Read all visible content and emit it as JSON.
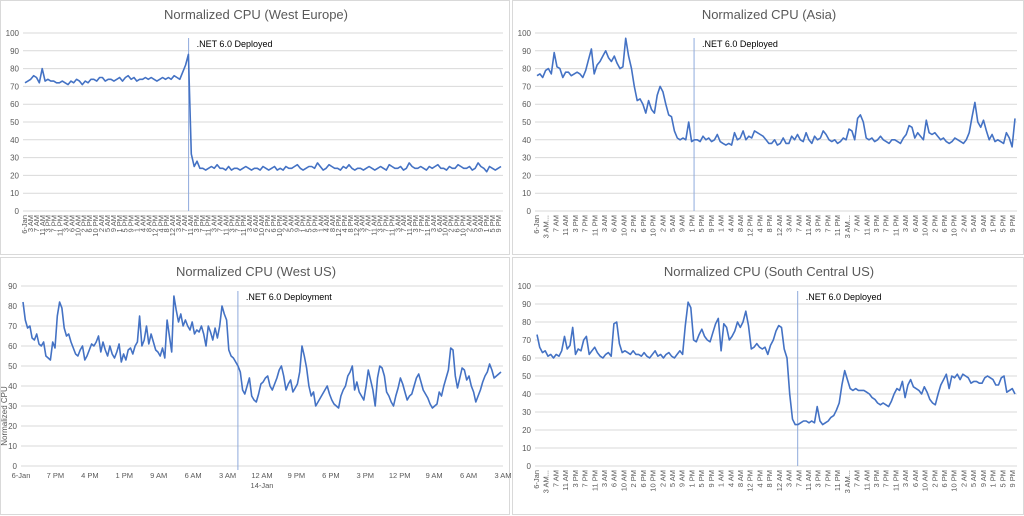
{
  "colors": {
    "series": "#4472C4",
    "grid": "#d9d9d9",
    "annotation": "#8faadc",
    "text": "#595959"
  },
  "chart_data": [
    {
      "type": "line",
      "title": "Normalized CPU (West Europe)",
      "ylabel": "",
      "ylim": [
        0,
        100
      ],
      "yticks": [
        0,
        10,
        20,
        30,
        40,
        50,
        60,
        70,
        80,
        90,
        100
      ],
      "rotated_ticks": true,
      "xticks": [
        "6-Jan",
        "3 AM",
        "7 AM",
        "11 AM",
        "3 PM",
        "7 PM",
        "11 PM",
        "3 AM",
        "6 AM",
        "10 AM",
        "2 PM",
        "6 PM",
        "10 PM",
        "2 AM",
        "5 AM",
        "9 AM",
        "1 PM",
        "5 PM",
        "9 PM",
        "1 AM",
        "4 AM",
        "8 AM",
        "12 PM",
        "4 PM",
        "8 PM",
        "12 AM",
        "3 AM",
        "7 AM",
        "11 AM",
        "3 PM",
        "7 PM",
        "11 PM",
        "3 AM",
        "7 AM",
        "11 AM",
        "3 PM",
        "7 PM",
        "11 PM",
        "3 AM",
        "6 AM",
        "10 AM",
        "2 PM",
        "6 PM",
        "10 PM",
        "2 AM",
        "5 AM",
        "9 AM",
        "1 PM",
        "5 PM",
        "9 PM",
        "1 AM",
        "4 AM",
        "8 AM",
        "12 PM",
        "4 PM",
        "8 PM",
        "12 AM",
        "3 AM",
        "7 AM",
        "11 AM",
        "3 PM",
        "7 PM",
        "11 PM",
        "3 AM",
        "7 AM",
        "11 AM",
        "3 PM",
        "7 PM",
        "11 PM",
        "3 AM",
        "6 AM",
        "10 AM",
        "2 PM",
        "6 PM",
        "10 PM",
        "2 AM",
        "5 AM",
        "9 AM",
        "1 PM",
        "5 PM",
        "9 PM"
      ],
      "annotation": {
        "label": ".NET 6.0 Deployed",
        "at": 0.345
      },
      "values": [
        72,
        73,
        74,
        76,
        75,
        72,
        80,
        73,
        74,
        73,
        73,
        72,
        72,
        73,
        72,
        71,
        73,
        72,
        74,
        73,
        71,
        73,
        72,
        74,
        74,
        73,
        75,
        75,
        73,
        74,
        74,
        73,
        74,
        75,
        73,
        75,
        76,
        74,
        75,
        73,
        74,
        74,
        75,
        74,
        75,
        74,
        73,
        74,
        75,
        74,
        75,
        74,
        76,
        75,
        74,
        78,
        82,
        88,
        32,
        25,
        28,
        24,
        24,
        23,
        24,
        25,
        24,
        26,
        24,
        24,
        23,
        25,
        23,
        24,
        24,
        23,
        24,
        25,
        24,
        23,
        24,
        24,
        23,
        25,
        24,
        23,
        24,
        25,
        23,
        24,
        23,
        25,
        24,
        24,
        25,
        26,
        24,
        23,
        24,
        25,
        25,
        24,
        27,
        25,
        23,
        24,
        26,
        25,
        24,
        24,
        23,
        25,
        24,
        26,
        24,
        23,
        24,
        24,
        23,
        24,
        25,
        24,
        23,
        24,
        25,
        24,
        23,
        26,
        25,
        24,
        24,
        25,
        23,
        24,
        27,
        25,
        24,
        24,
        25,
        24,
        23,
        25,
        24,
        25,
        26,
        24,
        24,
        23,
        25,
        24,
        24,
        26,
        25,
        24,
        24,
        25,
        23,
        24,
        27,
        25,
        24,
        22,
        25,
        24,
        23,
        24,
        25
      ]
    },
    {
      "type": "line",
      "title": "Normalized CPU (Asia)",
      "ylabel": "",
      "ylim": [
        0,
        100
      ],
      "yticks": [
        0,
        10,
        20,
        30,
        40,
        50,
        60,
        70,
        80,
        90,
        100
      ],
      "rotated_ticks": true,
      "xticks": [
        "6-Jan",
        "3 AM...",
        "7 AM",
        "11 AM",
        "3 PM",
        "7 PM",
        "11 PM",
        "3 AM",
        "6 AM",
        "10 AM",
        "2 PM",
        "6 PM",
        "10 PM",
        "2 AM",
        "5 AM",
        "9 AM",
        "1 PM",
        "5 PM",
        "9 PM",
        "1 AM",
        "4 AM",
        "8 AM",
        "12 PM",
        "4 PM",
        "8 PM",
        "12 AM",
        "3 AM",
        "7 AM",
        "11 AM",
        "3 PM",
        "7 PM",
        "11 PM",
        "3 AM...",
        "7 AM",
        "11 AM",
        "3 PM",
        "7 PM",
        "11 PM",
        "3 AM",
        "6 AM",
        "10 AM",
        "2 PM",
        "6 PM",
        "10 PM",
        "2 AM",
        "5 AM",
        "9 AM",
        "1 PM",
        "5 PM",
        "9 PM"
      ],
      "annotation": {
        "label": ".NET 6.0 Deployed",
        "at": 0.33
      },
      "values": [
        76,
        77,
        75,
        79,
        80,
        77,
        89,
        81,
        80,
        75,
        78,
        78,
        76,
        77,
        78,
        77,
        75,
        79,
        85,
        91,
        77,
        82,
        84,
        87,
        90,
        86,
        84,
        87,
        83,
        80,
        81,
        97,
        87,
        80,
        70,
        62,
        63,
        60,
        55,
        62,
        57,
        55,
        65,
        70,
        67,
        60,
        54,
        53,
        45,
        41,
        40,
        41,
        40,
        50,
        39,
        40,
        40,
        39,
        42,
        40,
        41,
        39,
        40,
        43,
        39,
        38,
        37,
        38,
        37,
        44,
        40,
        41,
        45,
        40,
        42,
        41,
        45,
        44,
        43,
        42,
        40,
        38,
        38,
        40,
        37,
        38,
        41,
        38,
        38,
        42,
        40,
        43,
        40,
        39,
        44,
        40,
        38,
        42,
        40,
        41,
        45,
        43,
        40,
        39,
        40,
        38,
        39,
        41,
        40,
        46,
        45,
        40,
        52,
        54,
        50,
        41,
        40,
        41,
        39,
        40,
        42,
        40,
        39,
        38,
        40,
        40,
        39,
        38,
        41,
        43,
        48,
        47,
        41,
        44,
        42,
        40,
        51,
        44,
        43,
        44,
        42,
        40,
        41,
        39,
        38,
        39,
        41,
        40,
        39,
        38,
        40,
        44,
        53,
        61,
        50,
        47,
        51,
        45,
        40,
        43,
        39,
        40,
        39,
        38,
        44,
        41,
        36,
        52
      ]
    },
    {
      "type": "line",
      "title": "Normalized CPU (West US)",
      "ylabel": "Normalized CPU",
      "ylim": [
        0,
        90
      ],
      "yticks": [
        0,
        10,
        20,
        30,
        40,
        50,
        60,
        70,
        80,
        90
      ],
      "rotated_ticks": false,
      "xticks": [
        "6-Jan",
        "7 PM",
        "4 PM",
        "1 PM",
        "9 AM",
        "6 AM",
        "3 AM",
        "12 AM",
        "9 PM",
        "6 PM",
        "3 PM",
        "12 PM",
        "9 AM",
        "6 AM",
        "3 AM"
      ],
      "xsubtick": {
        "under": "12 AM",
        "label": "14-Jan"
      },
      "annotation": {
        "label": ".NET 6.0 Deployment",
        "at": 0.45
      },
      "values": [
        82,
        73,
        69,
        70,
        64,
        63,
        66,
        61,
        60,
        62,
        55,
        54,
        53,
        62,
        59,
        75,
        82,
        79,
        69,
        65,
        66,
        62,
        59,
        56,
        55,
        58,
        60,
        53,
        55,
        58,
        61,
        60,
        62,
        65,
        57,
        62,
        58,
        55,
        60,
        56,
        54,
        57,
        61,
        52,
        56,
        53,
        58,
        59,
        56,
        60,
        62,
        75,
        60,
        63,
        70,
        61,
        66,
        62,
        58,
        57,
        55,
        59,
        54,
        73,
        65,
        57,
        85,
        78,
        72,
        76,
        70,
        73,
        70,
        68,
        72,
        66,
        68,
        67,
        70,
        66,
        60,
        70,
        67,
        63,
        69,
        64,
        70,
        80,
        76,
        73,
        58,
        55,
        54,
        52,
        50,
        47,
        38,
        36,
        40,
        44,
        35,
        33,
        32,
        36,
        41,
        42,
        44,
        45,
        40,
        38,
        41,
        44,
        48,
        50,
        45,
        38,
        41,
        43,
        37,
        39,
        41,
        47,
        60,
        55,
        49,
        40,
        35,
        37,
        30,
        32,
        34,
        36,
        38,
        40,
        36,
        33,
        31,
        30,
        29,
        35,
        38,
        40,
        45,
        47,
        50,
        38,
        42,
        37,
        35,
        33,
        40,
        48,
        43,
        38,
        30,
        44,
        50,
        49,
        45,
        37,
        35,
        32,
        30,
        35,
        39,
        44,
        41,
        37,
        33,
        35,
        36,
        40,
        44,
        46,
        42,
        38,
        36,
        34,
        31,
        29,
        30,
        31,
        37,
        35,
        40,
        44,
        48,
        59,
        58,
        45,
        39,
        44,
        49,
        48,
        43,
        45,
        40,
        37,
        32,
        35,
        38,
        42,
        45,
        47,
        51,
        48,
        44,
        45,
        46,
        47
      ]
    },
    {
      "type": "line",
      "title": "Normalized CPU (South Central US)",
      "ylabel": "",
      "ylim": [
        0,
        100
      ],
      "yticks": [
        0,
        10,
        20,
        30,
        40,
        50,
        60,
        70,
        80,
        90,
        100
      ],
      "rotated_ticks": true,
      "xticks": [
        "6-Jan",
        "3 AM...",
        "7 AM",
        "11 AM",
        "3 PM",
        "7 PM",
        "11 PM",
        "3 AM",
        "6 AM",
        "10 AM",
        "2 PM",
        "6 PM",
        "10 PM",
        "2 AM",
        "5 AM",
        "9 AM",
        "1 PM",
        "5 PM",
        "9 PM",
        "1 AM",
        "4 AM",
        "8 AM",
        "12 PM",
        "4 PM",
        "8 PM",
        "12 AM",
        "3 AM",
        "7 AM",
        "11 AM",
        "3 PM",
        "7 PM",
        "11 PM",
        "3 AM...",
        "7 AM",
        "11 AM",
        "3 PM",
        "7 PM",
        "11 PM",
        "3 AM",
        "6 AM",
        "10 AM",
        "2 PM",
        "6 PM",
        "10 PM",
        "2 AM",
        "5 AM",
        "9 AM",
        "1 PM",
        "5 PM",
        "9 PM"
      ],
      "annotation": {
        "label": ".NET 6.0 Deployed",
        "at": 0.545
      },
      "values": [
        73,
        66,
        63,
        64,
        61,
        62,
        60,
        62,
        61,
        64,
        72,
        65,
        67,
        77,
        62,
        65,
        64,
        70,
        72,
        62,
        64,
        66,
        63,
        61,
        60,
        62,
        63,
        61,
        79,
        80,
        68,
        63,
        64,
        63,
        62,
        64,
        62,
        62,
        61,
        63,
        61,
        60,
        62,
        64,
        61,
        62,
        60,
        62,
        63,
        61,
        60,
        62,
        64,
        62,
        78,
        91,
        88,
        70,
        69,
        73,
        76,
        72,
        70,
        69,
        74,
        79,
        82,
        64,
        79,
        77,
        70,
        72,
        75,
        80,
        77,
        80,
        86,
        78,
        65,
        66,
        68,
        66,
        65,
        66,
        62,
        67,
        70,
        75,
        78,
        77,
        65,
        60,
        40,
        26,
        23,
        23,
        24,
        25,
        25,
        24,
        25,
        24,
        33,
        25,
        23,
        24,
        25,
        27,
        28,
        31,
        35,
        45,
        53,
        48,
        43,
        42,
        43,
        42,
        42,
        42,
        41,
        40,
        38,
        37,
        35,
        34,
        35,
        34,
        33,
        36,
        40,
        43,
        42,
        47,
        38,
        45,
        48,
        44,
        43,
        42,
        40,
        44,
        41,
        37,
        35,
        34,
        40,
        45,
        48,
        51,
        43,
        50,
        49,
        51,
        48,
        51,
        50,
        49,
        46,
        47,
        47,
        46,
        46,
        49,
        50,
        49,
        48,
        45,
        45,
        49,
        50,
        41,
        42,
        43,
        40
      ]
    }
  ]
}
